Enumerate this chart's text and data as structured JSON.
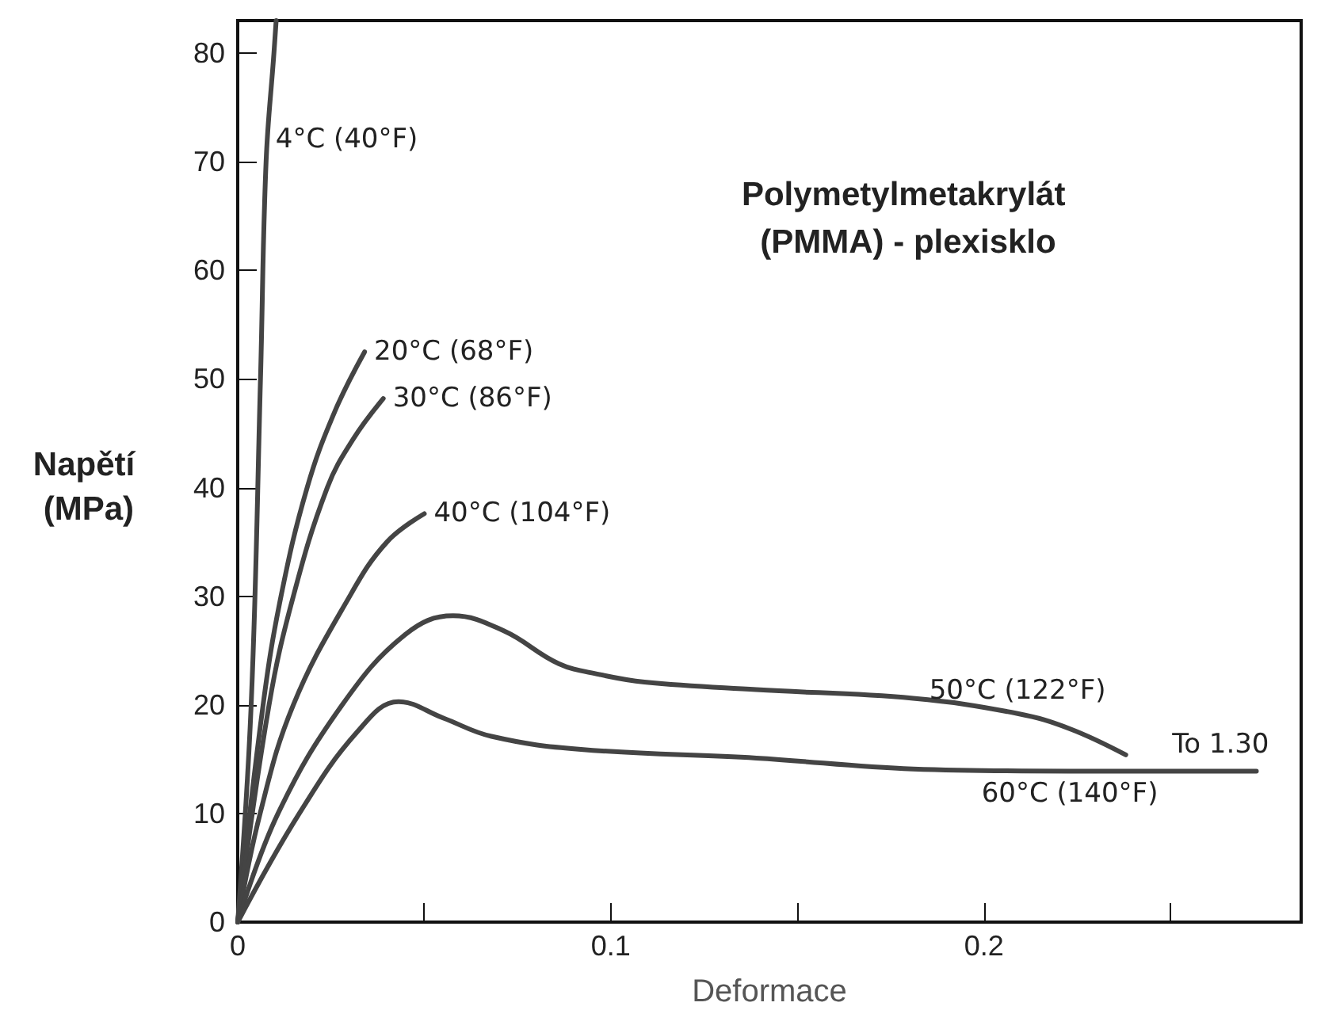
{
  "chart_data": {
    "type": "line",
    "title": "Polymetylmetakrylát (PMMA) - plexisklo",
    "xlabel": "Deformace",
    "ylabel": "Napětí (MPa)",
    "xlim": [
      0,
      0.285
    ],
    "ylim": [
      0,
      83
    ],
    "xticks": [
      0,
      {
        "value": 0.05,
        "label": null
      },
      0.1,
      {
        "value": 0.15,
        "label": null
      },
      0.2,
      {
        "value": 0.25,
        "label": null
      }
    ],
    "yticks": [
      0,
      10,
      20,
      30,
      40,
      50,
      60,
      70,
      80
    ],
    "grid": false,
    "legend": false,
    "marker": "none",
    "line_style": "solid",
    "annotations": [
      {
        "text": "To 1.30",
        "x": 0.273,
        "y": 13.9
      }
    ],
    "series": [
      {
        "name": "4°C (40°F)",
        "color": "#444444",
        "x": [
          0,
          0.0036,
          0.0061,
          0.0076,
          0.0097,
          0.0103
        ],
        "values": [
          0,
          20,
          50,
          70,
          80,
          83
        ]
      },
      {
        "name": "20°C (68°F)",
        "color": "#444444",
        "x": [
          0,
          0.0068,
          0.0116,
          0.0186,
          0.026,
          0.034
        ],
        "values": [
          0,
          20,
          30,
          40,
          47,
          52.5
        ]
      },
      {
        "name": "30°C (86°F)",
        "color": "#444444",
        "x": [
          0,
          0.0084,
          0.0149,
          0.024,
          0.031,
          0.039
        ],
        "values": [
          0,
          20,
          30,
          40,
          44.5,
          48.2
        ]
      },
      {
        "name": "40°C (104°F)",
        "color": "#444444",
        "x": [
          0,
          0.006,
          0.0149,
          0.03,
          0.04,
          0.05
        ],
        "values": [
          0,
          10,
          20,
          30,
          35,
          37.6
        ]
      },
      {
        "name": "50°C (122°F)",
        "color": "#444444",
        "x": [
          0,
          0.0108,
          0.028,
          0.045,
          0.0577,
          0.0714,
          0.086,
          0.0969,
          0.109,
          0.139,
          0.181,
          0.209,
          0.223,
          0.238
        ],
        "values": [
          0,
          10,
          20,
          26.5,
          28.2,
          26.8,
          23.8,
          22.8,
          22.1,
          21.4,
          20.6,
          19.2,
          17.8,
          15.4
        ]
      },
      {
        "name": "60°C (140°F)",
        "color": "#444444",
        "x": [
          0,
          0.0165,
          0.032,
          0.0431,
          0.055,
          0.068,
          0.092,
          0.139,
          0.181,
          0.223,
          0.273
        ],
        "values": [
          0,
          10,
          17.5,
          20.3,
          18.8,
          17.1,
          15.9,
          15.1,
          14.1,
          13.9,
          13.9
        ]
      }
    ]
  }
}
